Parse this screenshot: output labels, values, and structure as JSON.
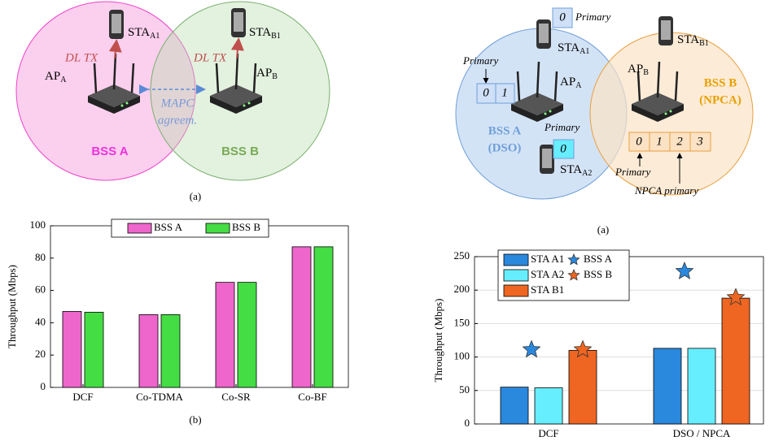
{
  "left_diagram": {
    "sta_a1": {
      "name": "STA",
      "sub": "A1"
    },
    "sta_b1": {
      "name": "STA",
      "sub": "B1"
    },
    "ap_a": {
      "name": "AP",
      "sub": "A"
    },
    "ap_b": {
      "name": "AP",
      "sub": "B"
    },
    "dl_tx_a": "DL TX",
    "dl_tx_b": "DL TX",
    "mapc": [
      "MAPC",
      "agreem."
    ],
    "bss_a": "BSS A",
    "bss_b": "BSS B",
    "caption": "(a)"
  },
  "right_diagram": {
    "sta_a1": {
      "name": "STA",
      "sub": "A1"
    },
    "sta_a2": {
      "name": "STA",
      "sub": "A2"
    },
    "sta_b1": {
      "name": "STA",
      "sub": "B1"
    },
    "ap_a": {
      "name": "AP",
      "sub": "A"
    },
    "ap_b": {
      "name": "AP",
      "sub": "B"
    },
    "sta_a1_channel": "0",
    "sta_a1_primary": "Primary",
    "ap_a_primary": "Primary",
    "ap_a_channels": [
      "0",
      "1"
    ],
    "sta_a2_primary": "Primary",
    "sta_a2_channel": "0",
    "ap_b_channels": [
      "0",
      "1",
      "2",
      "3"
    ],
    "ap_b_primary": "Primary",
    "npca_primary": "NPCA primary",
    "bss_a": [
      "BSS A",
      "(DSO)"
    ],
    "bss_b": [
      "BSS B",
      "(NPCA)"
    ],
    "caption": "(a)"
  },
  "chart_data": [
    {
      "type": "bar",
      "ylabel": "Throughput (Mbps)",
      "categories": [
        "DCF",
        "Co-TDMA",
        "Co-SR",
        "Co-BF"
      ],
      "series": [
        {
          "name": "BSS A",
          "color": "#ee66cc",
          "values": [
            47,
            45,
            65,
            87
          ]
        },
        {
          "name": "BSS B",
          "color": "#44dd44",
          "values": [
            46.5,
            45,
            65,
            87
          ]
        }
      ],
      "ylim": [
        0,
        100
      ],
      "yticks": [
        0,
        20,
        40,
        60,
        80,
        100
      ],
      "grid": false,
      "legend": "upper center",
      "caption": "(b)"
    },
    {
      "type": "bar",
      "ylabel": "Throughput (Mbps)",
      "categories": [
        "DCF",
        "DSO / NPCA"
      ],
      "series": [
        {
          "name": "STA A1",
          "color": "#2a88dd",
          "values": [
            55,
            113
          ]
        },
        {
          "name": "STA A2",
          "color": "#66eeff",
          "values": [
            54,
            113
          ]
        },
        {
          "name": "STA B1",
          "color": "#ee6622",
          "values": [
            110,
            188
          ]
        },
        {
          "name": "BSS A",
          "color": "#2a88dd",
          "marker": "star",
          "values": [
            111,
            228
          ]
        },
        {
          "name": "BSS B",
          "color": "#ee6622",
          "marker": "star",
          "values": [
            111,
            189
          ]
        }
      ],
      "ylim": [
        0,
        250
      ],
      "yticks": [
        0,
        50,
        100,
        150,
        200,
        250
      ],
      "grid": true,
      "legend": "upper left"
    }
  ]
}
